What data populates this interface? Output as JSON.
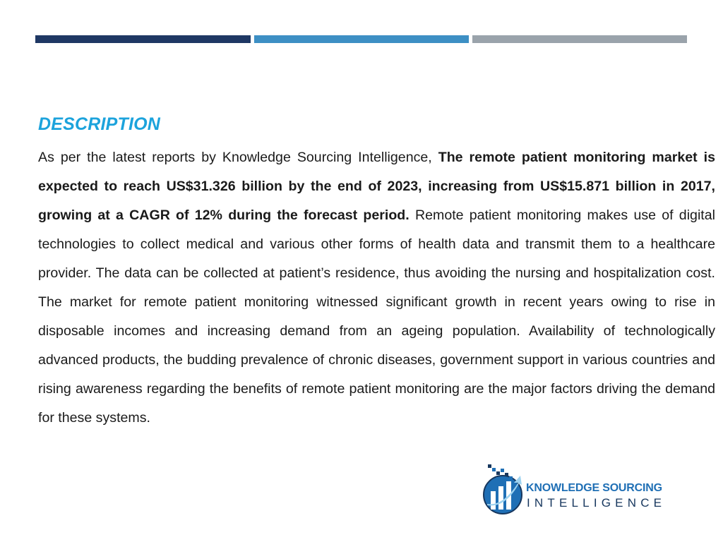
{
  "colors": {
    "bar_dark": "#1f3864",
    "bar_mid": "#3d8fc4",
    "bar_light": "#9aa3ab",
    "heading": "#1ca3dc",
    "logo_blue": "#1f6fb5",
    "logo_navy": "#17375e"
  },
  "heading": "DESCRIPTION",
  "paragraph": {
    "intro": "As per the latest reports by Knowledge Sourcing Intelligence, ",
    "highlight": "The remote patient monitoring market is expected to reach US$31.326 billion by the end of 2023, increasing from US$15.871 billion in 2017, growing at a CAGR of 12% during the forecast period.",
    "rest": " Remote patient monitoring makes use of digital technologies to collect medical and various other forms of health data and transmit them to a healthcare provider. The data can be collected at patient’s residence, thus avoiding the nursing and hospitalization cost. The market for remote patient monitoring witnessed significant growth in recent years owing to rise in disposable incomes and increasing demand from an ageing population. Availability of technologically advanced products, the budding prevalence of chronic diseases, government support in various countries and rising awareness regarding the benefits of remote patient monitoring are the major factors driving the demand for these systems."
  },
  "logo": {
    "line1": "KNOWLEDGE SOURCING",
    "line2": "INTELLIGENCE",
    "icon": "globe-arrow-icon"
  }
}
